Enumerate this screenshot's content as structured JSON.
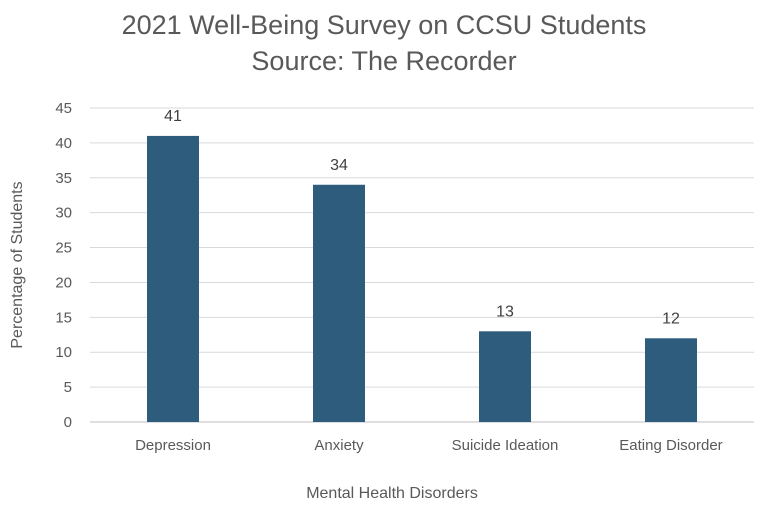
{
  "chart_data": {
    "type": "bar",
    "title": "2021 Well-Being Survey on CCSU Students",
    "subtitle": "Source: The Recorder",
    "categories": [
      "Depression",
      "Anxiety",
      "Suicide Ideation",
      "Eating Disorder"
    ],
    "values": [
      41,
      34,
      13,
      12
    ],
    "xlabel": "Mental Health Disorders",
    "ylabel": "Percentage of Students",
    "ylim": [
      0,
      45
    ],
    "yticks": [
      0,
      5,
      10,
      15,
      20,
      25,
      30,
      35,
      40,
      45
    ],
    "grid": true,
    "bar_color": "#2e5c7d",
    "data_labels": true
  }
}
